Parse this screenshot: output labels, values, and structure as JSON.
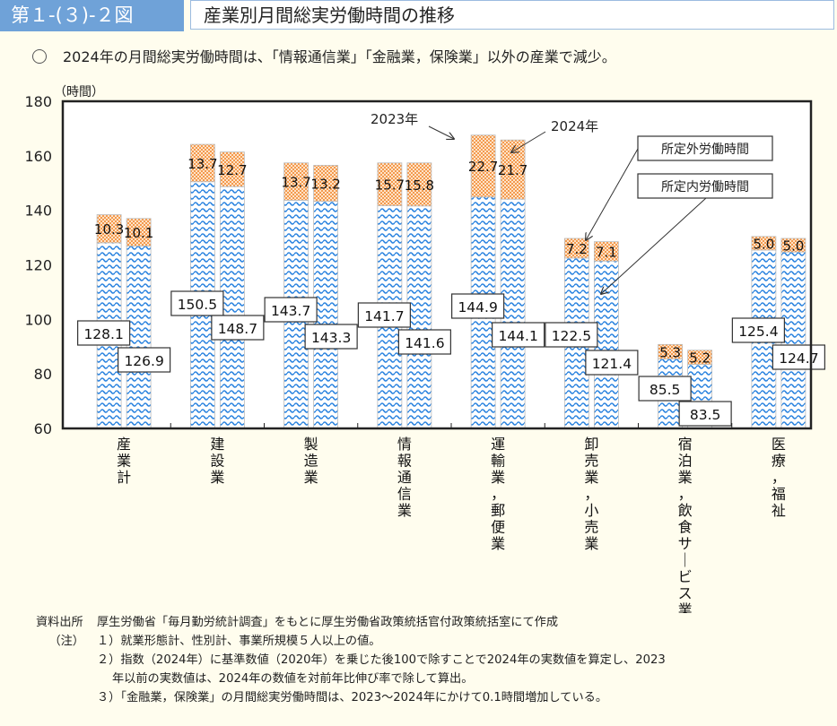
{
  "header": {
    "figure_number": "第１-(３)-２図",
    "title": "産業別月間総実労働時間の推移"
  },
  "summary": {
    "bullet_icon": "circle-bullet-icon",
    "text": "2024年の月間総実労働時間は、「情報通信業」「金融業，保険業」以外の産業で減少。"
  },
  "chart_data": {
    "type": "bar",
    "stacked": true,
    "title": "産業別月間総実労働時間の推移",
    "ylabel": "（時間）",
    "ylim": [
      60,
      180
    ],
    "yticks": [
      60,
      80,
      100,
      120,
      140,
      160,
      180
    ],
    "grid": false,
    "categories": [
      "産業計",
      "建設業",
      "製造業",
      "情報通信業",
      "運輸業，郵便業",
      "卸売業，小売業",
      "宿泊業，飲食サービス業",
      "医療，福祉"
    ],
    "years": [
      "2023年",
      "2024年"
    ],
    "series": [
      {
        "name": "所定内労働時間",
        "color": "#3a8ee0",
        "values_2023": [
          128.1,
          150.5,
          143.7,
          141.7,
          144.9,
          122.5,
          85.5,
          125.4
        ],
        "values_2024": [
          126.9,
          148.7,
          143.3,
          141.6,
          144.1,
          121.4,
          83.5,
          124.7
        ],
        "labels_2023": [
          "128.1",
          "150.5",
          "143.7",
          "141.7",
          "144.9",
          "122.5",
          "85.5",
          "125.4"
        ],
        "labels_2024": [
          "126.9",
          "148.7",
          "143.3",
          "141.6",
          "144.1",
          "121.4",
          "83.5",
          "124.7"
        ]
      },
      {
        "name": "所定外労働時間",
        "color": "#f08a3c",
        "values_2023": [
          10.3,
          13.7,
          13.7,
          15.7,
          22.7,
          7.2,
          5.3,
          5.0
        ],
        "values_2024": [
          10.1,
          12.7,
          13.2,
          15.8,
          21.7,
          7.1,
          5.2,
          5.0
        ],
        "labels_2023": [
          "10.3",
          "13.7",
          "13.7",
          "15.7",
          "22.7",
          "7.2",
          "5.3",
          "5.0"
        ],
        "labels_2024": [
          "10.1",
          "12.7",
          "13.2",
          "15.8",
          "21.7",
          "7.1",
          "5.2",
          "5.0"
        ]
      }
    ],
    "annotations": {
      "year_2023": "2023年",
      "year_2024": "2024年",
      "overtime": "所定外労働時間",
      "scheduled": "所定内労働時間"
    }
  },
  "notes": {
    "source_label": "資料出所",
    "source_text": "厚生労働省「毎月勤労統計調査」をもとに厚生労働省政策統括官付政策統括室にて作成",
    "notes_label": "（注）",
    "items": [
      "１）就業形態計、性別計、事業所規模５人以上の値。",
      "２）指数（2024年）に基準数値（2020年）を乗じた後100で除すことで2024年の実数値を算定し、2023",
      "年以前の実数値は、2024年の数値を対前年比伸び率で除して算出。",
      "３）「金融業，保険業」の月間総実労働時間は、2023～2024年にかけて0.1時間増加している。"
    ]
  }
}
